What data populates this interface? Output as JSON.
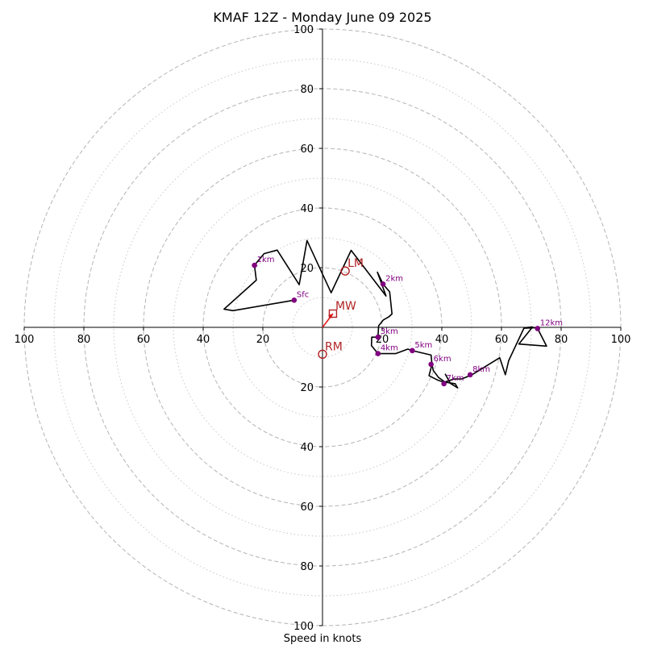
{
  "chart_data": {
    "type": "hodograph",
    "title": "KMAF 12Z - Monday June 09 2025",
    "xlabel": "Speed in knots",
    "units": "knots",
    "range": 100,
    "rings_major": [
      20,
      40,
      60,
      80,
      100
    ],
    "rings_minor": [
      10,
      30,
      50,
      70,
      90
    ],
    "x_ticks": [
      -100,
      -80,
      -60,
      -40,
      -20,
      20,
      40,
      60,
      80,
      100
    ],
    "y_ticks": [
      -100,
      -80,
      -60,
      -40,
      -20,
      20,
      40,
      60,
      80,
      100
    ],
    "x_tick_labels": [
      "100",
      "80",
      "60",
      "40",
      "20",
      "20",
      "40",
      "60",
      "80",
      "100"
    ],
    "y_tick_labels": [
      "100",
      "80",
      "60",
      "40",
      "20",
      "20",
      "40",
      "60",
      "80",
      "100"
    ],
    "grid": true,
    "trace": [
      [
        -9.5,
        9.1
      ],
      [
        -30,
        5.6
      ],
      [
        -33,
        6.1
      ],
      [
        -22.2,
        15.8
      ],
      [
        -22.8,
        20.8
      ],
      [
        -19.6,
        24.7
      ],
      [
        -15.2,
        25.9
      ],
      [
        -7.8,
        14.3
      ],
      [
        -5.2,
        29.1
      ],
      [
        2.9,
        11.6
      ],
      [
        9.6,
        25.8
      ],
      [
        21.3,
        10.5
      ],
      [
        18.4,
        18.5
      ],
      [
        20.3,
        14.5
      ],
      [
        22.5,
        11.9
      ],
      [
        23.3,
        4.5
      ],
      [
        22.2,
        3.5
      ],
      [
        20.4,
        2.5
      ],
      [
        18.8,
        0.5
      ],
      [
        18.6,
        -3.3
      ],
      [
        16.5,
        -3.3
      ],
      [
        16.4,
        -6.1
      ],
      [
        18.6,
        -8.8
      ],
      [
        24.5,
        -8.8
      ],
      [
        28.6,
        -7.3
      ],
      [
        30.1,
        -7.8
      ],
      [
        36.4,
        -9.3
      ],
      [
        36.7,
        -12.4
      ],
      [
        35.7,
        -16.2
      ],
      [
        38.4,
        -17.6
      ],
      [
        40.7,
        -18.4
      ],
      [
        44.2,
        -17.3
      ],
      [
        46.7,
        -17.3
      ],
      [
        50.1,
        -15.9
      ],
      [
        59.4,
        -10.2
      ],
      [
        61.3,
        -15.9
      ],
      [
        62.4,
        -11.2
      ],
      [
        67.5,
        -0.3
      ],
      [
        71.6,
        -0.1
      ],
      [
        72.1,
        -0.4
      ],
      [
        75.1,
        -6.3
      ],
      [
        65.8,
        -5.6
      ],
      [
        70.4,
        0.1
      ],
      [
        67.8,
        -0.1
      ]
    ],
    "inner_segment": [
      [
        36.7,
        -12.4
      ],
      [
        37.1,
        -14.4
      ],
      [
        38.9,
        -16.8
      ],
      [
        41.2,
        -18.4
      ],
      [
        44.5,
        -18.9
      ],
      [
        45.3,
        -20.3
      ],
      [
        42.9,
        -18.8
      ],
      [
        41.1,
        -15.6
      ]
    ],
    "height_markers": [
      {
        "label": "Sfc",
        "u": -9.5,
        "v": 9.1
      },
      {
        "label": "1km",
        "u": -22.8,
        "v": 20.8
      },
      {
        "label": "2km",
        "u": 20.3,
        "v": 14.5
      },
      {
        "label": "3km",
        "u": 18.6,
        "v": -3.3
      },
      {
        "label": "4km",
        "u": 18.6,
        "v": -8.8
      },
      {
        "label": "5km",
        "u": 30.1,
        "v": -7.8
      },
      {
        "label": "6km",
        "u": 36.4,
        "v": -12.4
      },
      {
        "label": "7km",
        "u": 40.7,
        "v": -18.9
      },
      {
        "label": "8km",
        "u": 49.5,
        "v": -15.9
      },
      {
        "label": "12km",
        "u": 72.1,
        "v": -0.4
      }
    ],
    "motions": [
      {
        "label": "LM",
        "u": 7.6,
        "v": 18.9,
        "marker": "circle"
      },
      {
        "label": "RM",
        "u": 0,
        "v": -9,
        "marker": "circle"
      },
      {
        "label": "MW",
        "u": 3.5,
        "v": 4.6,
        "marker": "square"
      }
    ],
    "mw_arrow": [
      [
        0,
        0
      ],
      [
        3.5,
        4.6
      ]
    ],
    "colors": {
      "trace": "#000000",
      "markers": "#800080",
      "motion": "#b22222",
      "arrow": "#e41a1c",
      "grid": "#b0b0b0"
    }
  }
}
